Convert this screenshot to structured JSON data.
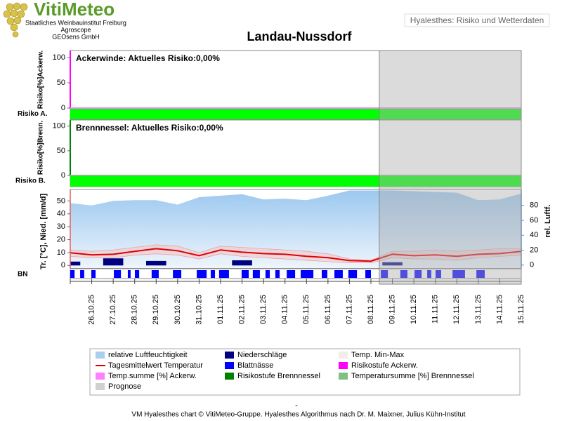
{
  "header": {
    "logo": "VitiMeteo",
    "lines": [
      "Staatliches Weinbauinstitut Freiburg",
      "Agroscope",
      "GEOsens GmbH"
    ],
    "button": "Hyalesthes: Risiko und Wetterdaten"
  },
  "title": "Landau-Nussdorf",
  "forecast_start": 14.39,
  "chart_data": [
    {
      "type": "risk",
      "title": "Ackerwinde: Aktuelles Risiko:0,00%",
      "ylabel": "Risiko[%]Ackerw.",
      "row_label": "Risiko A.",
      "ylim": [
        0,
        114
      ],
      "yticks": [
        0,
        50,
        100
      ],
      "axis_color": "#ff00ff",
      "color": "#ff80ff",
      "risk_color": "#00ff00",
      "values": [
        0,
        0,
        0,
        0,
        0,
        0,
        0,
        0,
        0,
        0,
        0,
        0,
        0,
        0,
        0,
        0,
        0,
        0,
        0,
        0,
        0,
        0
      ]
    },
    {
      "type": "risk",
      "title": "Brennnessel: Aktuelles Risiko:0,00%",
      "ylabel": "Risiko[%]Brenn.",
      "row_label": "Risiko B.",
      "ylim": [
        0,
        111
      ],
      "yticks": [
        0,
        50,
        100
      ],
      "axis_color": "#008000",
      "color": "#80c080",
      "risk_color": "#00ff00",
      "values": [
        0,
        0,
        0,
        0,
        0,
        0,
        0,
        0,
        0,
        0,
        0,
        0,
        0,
        0,
        0,
        0,
        0,
        0,
        0,
        0,
        0,
        0
      ]
    },
    {
      "type": "weather",
      "ylabel": "Tr. [°C], Nied. [mm/d]",
      "y2label": "rel. Luftf.",
      "row_label": "BN",
      "categories": [
        null,
        "26.10.25",
        "27.10.25",
        "28.10.25",
        "29.10.25",
        "30.10.25",
        "31.10.25",
        "01.11.25",
        "02.11.25",
        "03.11.25",
        "04.11.25",
        "05.11.25",
        "06.11.25",
        "07.11.25",
        "08.11.25",
        "09.11.25",
        "10.11.25",
        "11.11.25",
        "12.11.25",
        "13.11.25",
        "14.11.25",
        "15.11.25"
      ],
      "ylim": [
        -2,
        58.9
      ],
      "yticks": [
        0,
        10,
        20,
        30,
        40,
        50
      ],
      "y2lim": [
        -4,
        101.4
      ],
      "y2ticks": [
        0,
        20,
        40,
        60,
        80
      ],
      "humidity": {
        "axis": "y2",
        "color": "#a8cff0",
        "values": [
          83,
          80,
          86,
          87,
          87,
          81,
          91,
          93,
          95,
          88,
          89,
          87,
          93,
          100,
          100,
          100,
          99,
          98,
          97,
          87,
          88,
          96
        ]
      },
      "temp_mean": {
        "color": "#e00000",
        "values": [
          9.8,
          8.2,
          8.7,
          10.9,
          13.0,
          11.4,
          7.6,
          12.0,
          10.3,
          9.2,
          8.7,
          7.1,
          6.0,
          3.8,
          3.3,
          8.7,
          7.6,
          8.2,
          7.1,
          8.7,
          9.2,
          10.9
        ]
      },
      "temp_range": {
        "color": "#f4c4c4",
        "max": [
          12,
          11,
          12,
          14,
          16,
          15,
          10,
          15,
          14,
          13,
          12,
          11,
          9,
          5,
          4,
          11,
          11,
          12,
          11,
          12,
          13,
          13
        ],
        "min": [
          7,
          6,
          6,
          8,
          9,
          8,
          5,
          9,
          7,
          6,
          5,
          4,
          3,
          2,
          2,
          6,
          5,
          5,
          4,
          6,
          7,
          8
        ]
      },
      "precipitation": {
        "color": "#000080",
        "values": [
          3,
          0,
          5.5,
          0,
          3.5,
          0,
          0,
          0,
          4,
          0,
          0,
          0,
          0,
          0,
          0,
          2.5,
          0,
          0,
          0,
          0,
          0,
          0
        ]
      },
      "leaf_wetness": {
        "color": "#0000ff",
        "intervals": [
          [
            0,
            0.2
          ],
          [
            0.46,
            0.65
          ],
          [
            0.98,
            1.18
          ],
          [
            2.03,
            2.36
          ],
          [
            2.68,
            2.81
          ],
          [
            3.01,
            3.21
          ],
          [
            3.79,
            4.12
          ],
          [
            4.78,
            5.17
          ],
          [
            5.89,
            6.35
          ],
          [
            6.54,
            6.74
          ],
          [
            6.93,
            7.39
          ],
          [
            7.98,
            8.31
          ],
          [
            8.5,
            8.83
          ],
          [
            9.09,
            9.29
          ],
          [
            9.55,
            9.75
          ],
          [
            10.08,
            10.47
          ],
          [
            10.73,
            11.32
          ],
          [
            11.71,
            11.97
          ],
          [
            12.3,
            12.69
          ],
          [
            12.95,
            13.35
          ],
          [
            13.74,
            14.0
          ],
          [
            14.46,
            14.79
          ],
          [
            15.37,
            15.7
          ],
          [
            16.03,
            16.36
          ],
          [
            16.62,
            16.81
          ],
          [
            17.01,
            17.27
          ],
          [
            17.8,
            18.38
          ],
          [
            18.91,
            19.3
          ]
        ]
      }
    }
  ],
  "legend": [
    {
      "label": "relative Luftfeuchtigkeit",
      "color": "#a8cff0"
    },
    {
      "label": "Niederschläge",
      "color": "#000080"
    },
    {
      "label": "Temp. Min-Max",
      "color": "#f4ecec"
    },
    {
      "label": "Tagesmittelwert Temperatur",
      "color": "#e00000"
    },
    {
      "label": "Blattnässe",
      "color": "#0000ff"
    },
    {
      "label": "Risikostufe Ackerw.",
      "color": "#ff00ff"
    },
    {
      "label": "Temp.summe [%] Ackerw.",
      "color": "#ff80ff"
    },
    {
      "label": "Risikostufe Brennnessel",
      "color": "#008000"
    },
    {
      "label": "Temperatursumme [%] Brennnessel",
      "color": "#80c080"
    },
    {
      "label": "Prognose",
      "color": "#d0d0d0"
    }
  ],
  "footer": {
    "dash": "-",
    "text": "VM Hyalesthes chart © VitiMeteo-Gruppe. Hyalesthes Algorithmus nach Dr. M. Maixner, Julius Kühn-Institut"
  }
}
